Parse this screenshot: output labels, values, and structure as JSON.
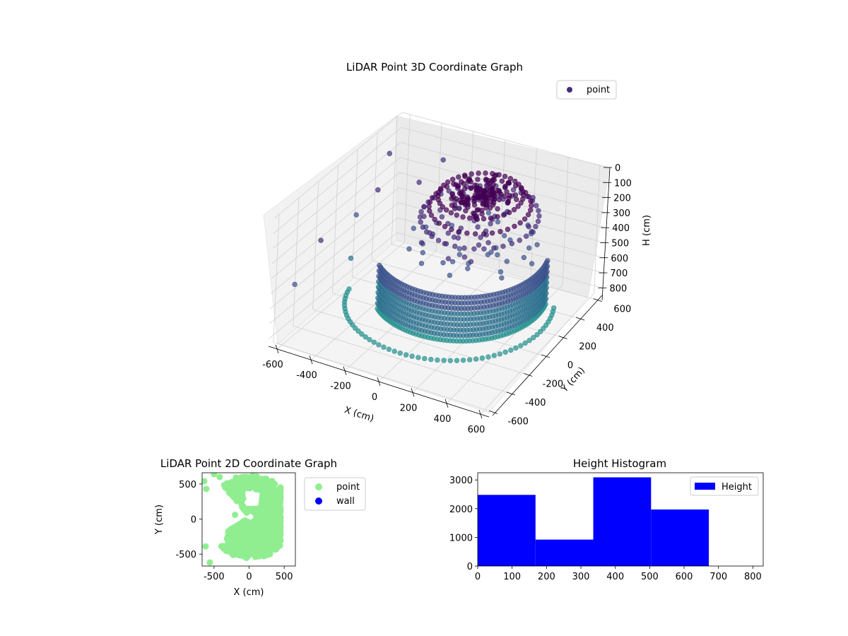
{
  "chart_data": [
    {
      "type": "scatter",
      "projection": "3d",
      "title": "LiDAR Point 3D Coordinate Graph",
      "xlabel": "X (cm)",
      "ylabel": "Y (cm)",
      "zlabel": "H (cm)",
      "xlim": [
        -650,
        650
      ],
      "ylim": [
        -650,
        650
      ],
      "zlim": [
        0,
        850
      ],
      "z_inverted": true,
      "xticks": [
        "-600",
        "-400",
        "-200",
        "0",
        "200",
        "400",
        "600"
      ],
      "yticks": [
        "-600",
        "-400",
        "-200",
        "0",
        "200",
        "400",
        "600"
      ],
      "zticks": [
        "0",
        "100",
        "200",
        "300",
        "400",
        "500",
        "600",
        "700",
        "800"
      ],
      "grid": true,
      "legend": {
        "placement": "upper-right",
        "entries": [
          {
            "label": "point",
            "color": "#472c7a"
          }
        ]
      },
      "colormap": [
        "#440154",
        "#472c7a",
        "#3b518b",
        "#2c718e",
        "#21908d",
        "#4fb576"
      ],
      "series": [
        {
          "name": "point"
        }
      ]
    },
    {
      "type": "scatter",
      "title": "LiDAR Point 2D Coordinate Graph",
      "xlabel": "X (cm)",
      "ylabel": "Y (cm)",
      "xlim": [
        -670,
        660
      ],
      "ylim": [
        -670,
        660
      ],
      "xticks": [
        "-500",
        "0",
        "500"
      ],
      "yticks": [
        "-500",
        "0",
        "500"
      ],
      "legend": {
        "placement": "outside-right",
        "entries": [
          {
            "label": "point",
            "color": "#90ee90"
          },
          {
            "label": "wall",
            "color": "#0000ff"
          }
        ]
      },
      "series": [
        {
          "name": "point",
          "color": "#90ee90"
        },
        {
          "name": "wall",
          "color": "#0000ff"
        }
      ]
    },
    {
      "type": "bar",
      "title": "Height Histogram",
      "xlim": [
        0,
        830
      ],
      "ylim": [
        0,
        3250
      ],
      "xticks": [
        "0",
        "100",
        "200",
        "300",
        "400",
        "500",
        "600",
        "700",
        "800"
      ],
      "yticks": [
        "0",
        "1000",
        "2000",
        "3000"
      ],
      "legend": {
        "placement": "upper-right",
        "entries": [
          {
            "label": "Height",
            "color": "#0000ff"
          }
        ]
      },
      "bins": [
        [
          0,
          168
        ],
        [
          168,
          336
        ],
        [
          336,
          504
        ],
        [
          504,
          672
        ],
        [
          672,
          840
        ]
      ],
      "values": [
        2480,
        920,
        3090,
        1970,
        0
      ],
      "color": "#0000ff",
      "series": [
        {
          "name": "Height"
        }
      ]
    }
  ]
}
